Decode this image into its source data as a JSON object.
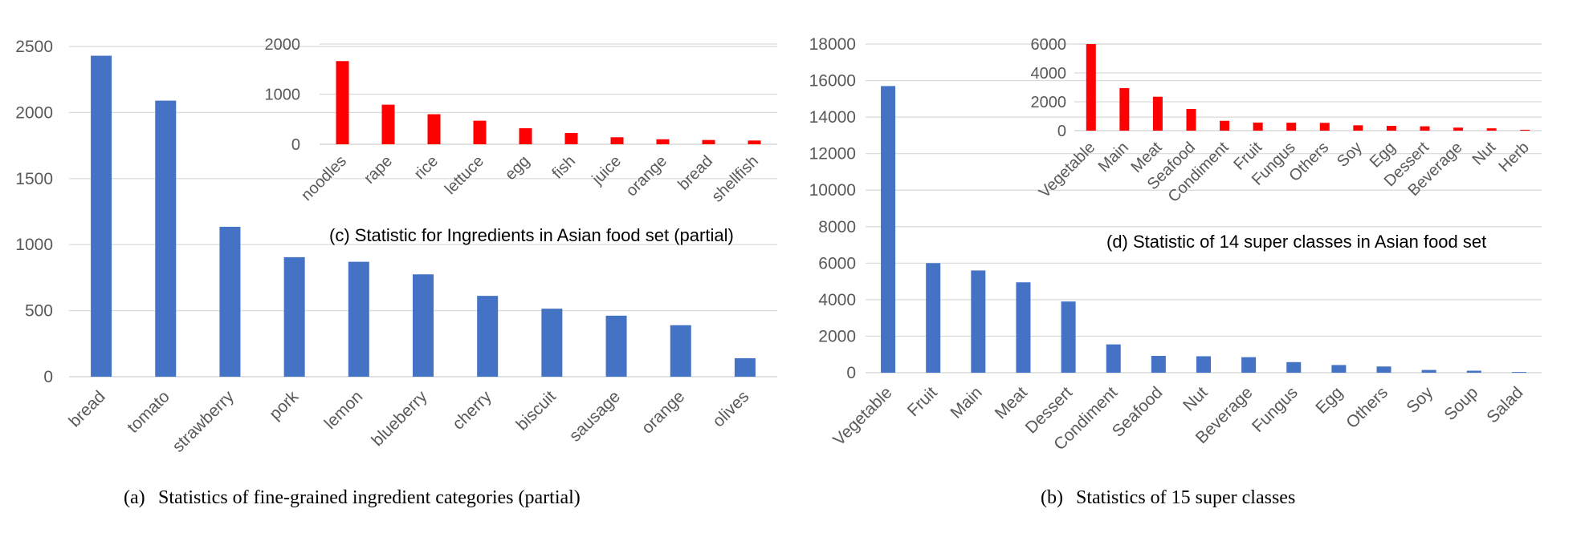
{
  "chart_data": [
    {
      "id": "a",
      "type": "bar",
      "title": "",
      "caption_label": "(a)",
      "caption_text": "Statistics of fine-grained ingredient categories (partial)",
      "categories": [
        "bread",
        "tomato",
        "strawberry",
        "pork",
        "lemon",
        "blueberry",
        "cherry",
        "biscuit",
        "sausage",
        "orange",
        "olives"
      ],
      "values": [
        2430,
        2090,
        1135,
        905,
        870,
        775,
        612,
        515,
        462,
        390,
        140
      ],
      "ylim": [
        0,
        2500
      ],
      "yticks": [
        "0",
        "500",
        "1000",
        "1500",
        "2000",
        "2500"
      ],
      "color": "#4472C4",
      "xlabel": "",
      "ylabel": ""
    },
    {
      "id": "c",
      "type": "bar",
      "title": "(c) Statistic for Ingredients in Asian food set (partial)",
      "categories": [
        "noodles",
        "rape",
        "rice",
        "lettuce",
        "egg",
        "fish",
        "juice",
        "orange",
        "bread",
        "shellfish"
      ],
      "values": [
        1660,
        790,
        600,
        470,
        320,
        225,
        140,
        100,
        85,
        75
      ],
      "ylim": [
        0,
        2000
      ],
      "yticks": [
        "0",
        "1000",
        "2000"
      ],
      "color": "#FF0000",
      "xlabel": "",
      "ylabel": ""
    },
    {
      "id": "b",
      "type": "bar",
      "title": "",
      "caption_label": "(b)",
      "caption_text": "Statistics of 15 super classes",
      "categories": [
        "Vegetable",
        "Fruit",
        "Main",
        "Meat",
        "Dessert",
        "Condiment",
        "Seafood",
        "Nut",
        "Beverage",
        "Fungus",
        "Egg",
        "Others",
        "Soy",
        "Soup",
        "Salad"
      ],
      "values": [
        15700,
        6000,
        5600,
        4950,
        3900,
        1550,
        920,
        900,
        850,
        580,
        420,
        340,
        150,
        110,
        40
      ],
      "ylim": [
        0,
        18000
      ],
      "yticks": [
        "0",
        "2000",
        "4000",
        "6000",
        "8000",
        "10000",
        "12000",
        "14000",
        "16000",
        "18000"
      ],
      "color": "#4472C4",
      "xlabel": "",
      "ylabel": ""
    },
    {
      "id": "d",
      "type": "bar",
      "title": "(d) Statistic of 14 super classes in Asian food set",
      "categories": [
        "Vegetable",
        "Main",
        "Meat",
        "Seafood",
        "Condiment",
        "Fruit",
        "Fungus",
        "Others",
        "Soy",
        "Egg",
        "Dessert",
        "Beverage",
        "Nut",
        "Herb"
      ],
      "values": [
        6000,
        2950,
        2350,
        1500,
        680,
        560,
        550,
        540,
        370,
        330,
        300,
        210,
        160,
        60
      ],
      "ylim": [
        0,
        6000
      ],
      "yticks": [
        "0",
        "2000",
        "4000",
        "6000"
      ],
      "color": "#FF0000",
      "xlabel": "",
      "ylabel": ""
    }
  ]
}
